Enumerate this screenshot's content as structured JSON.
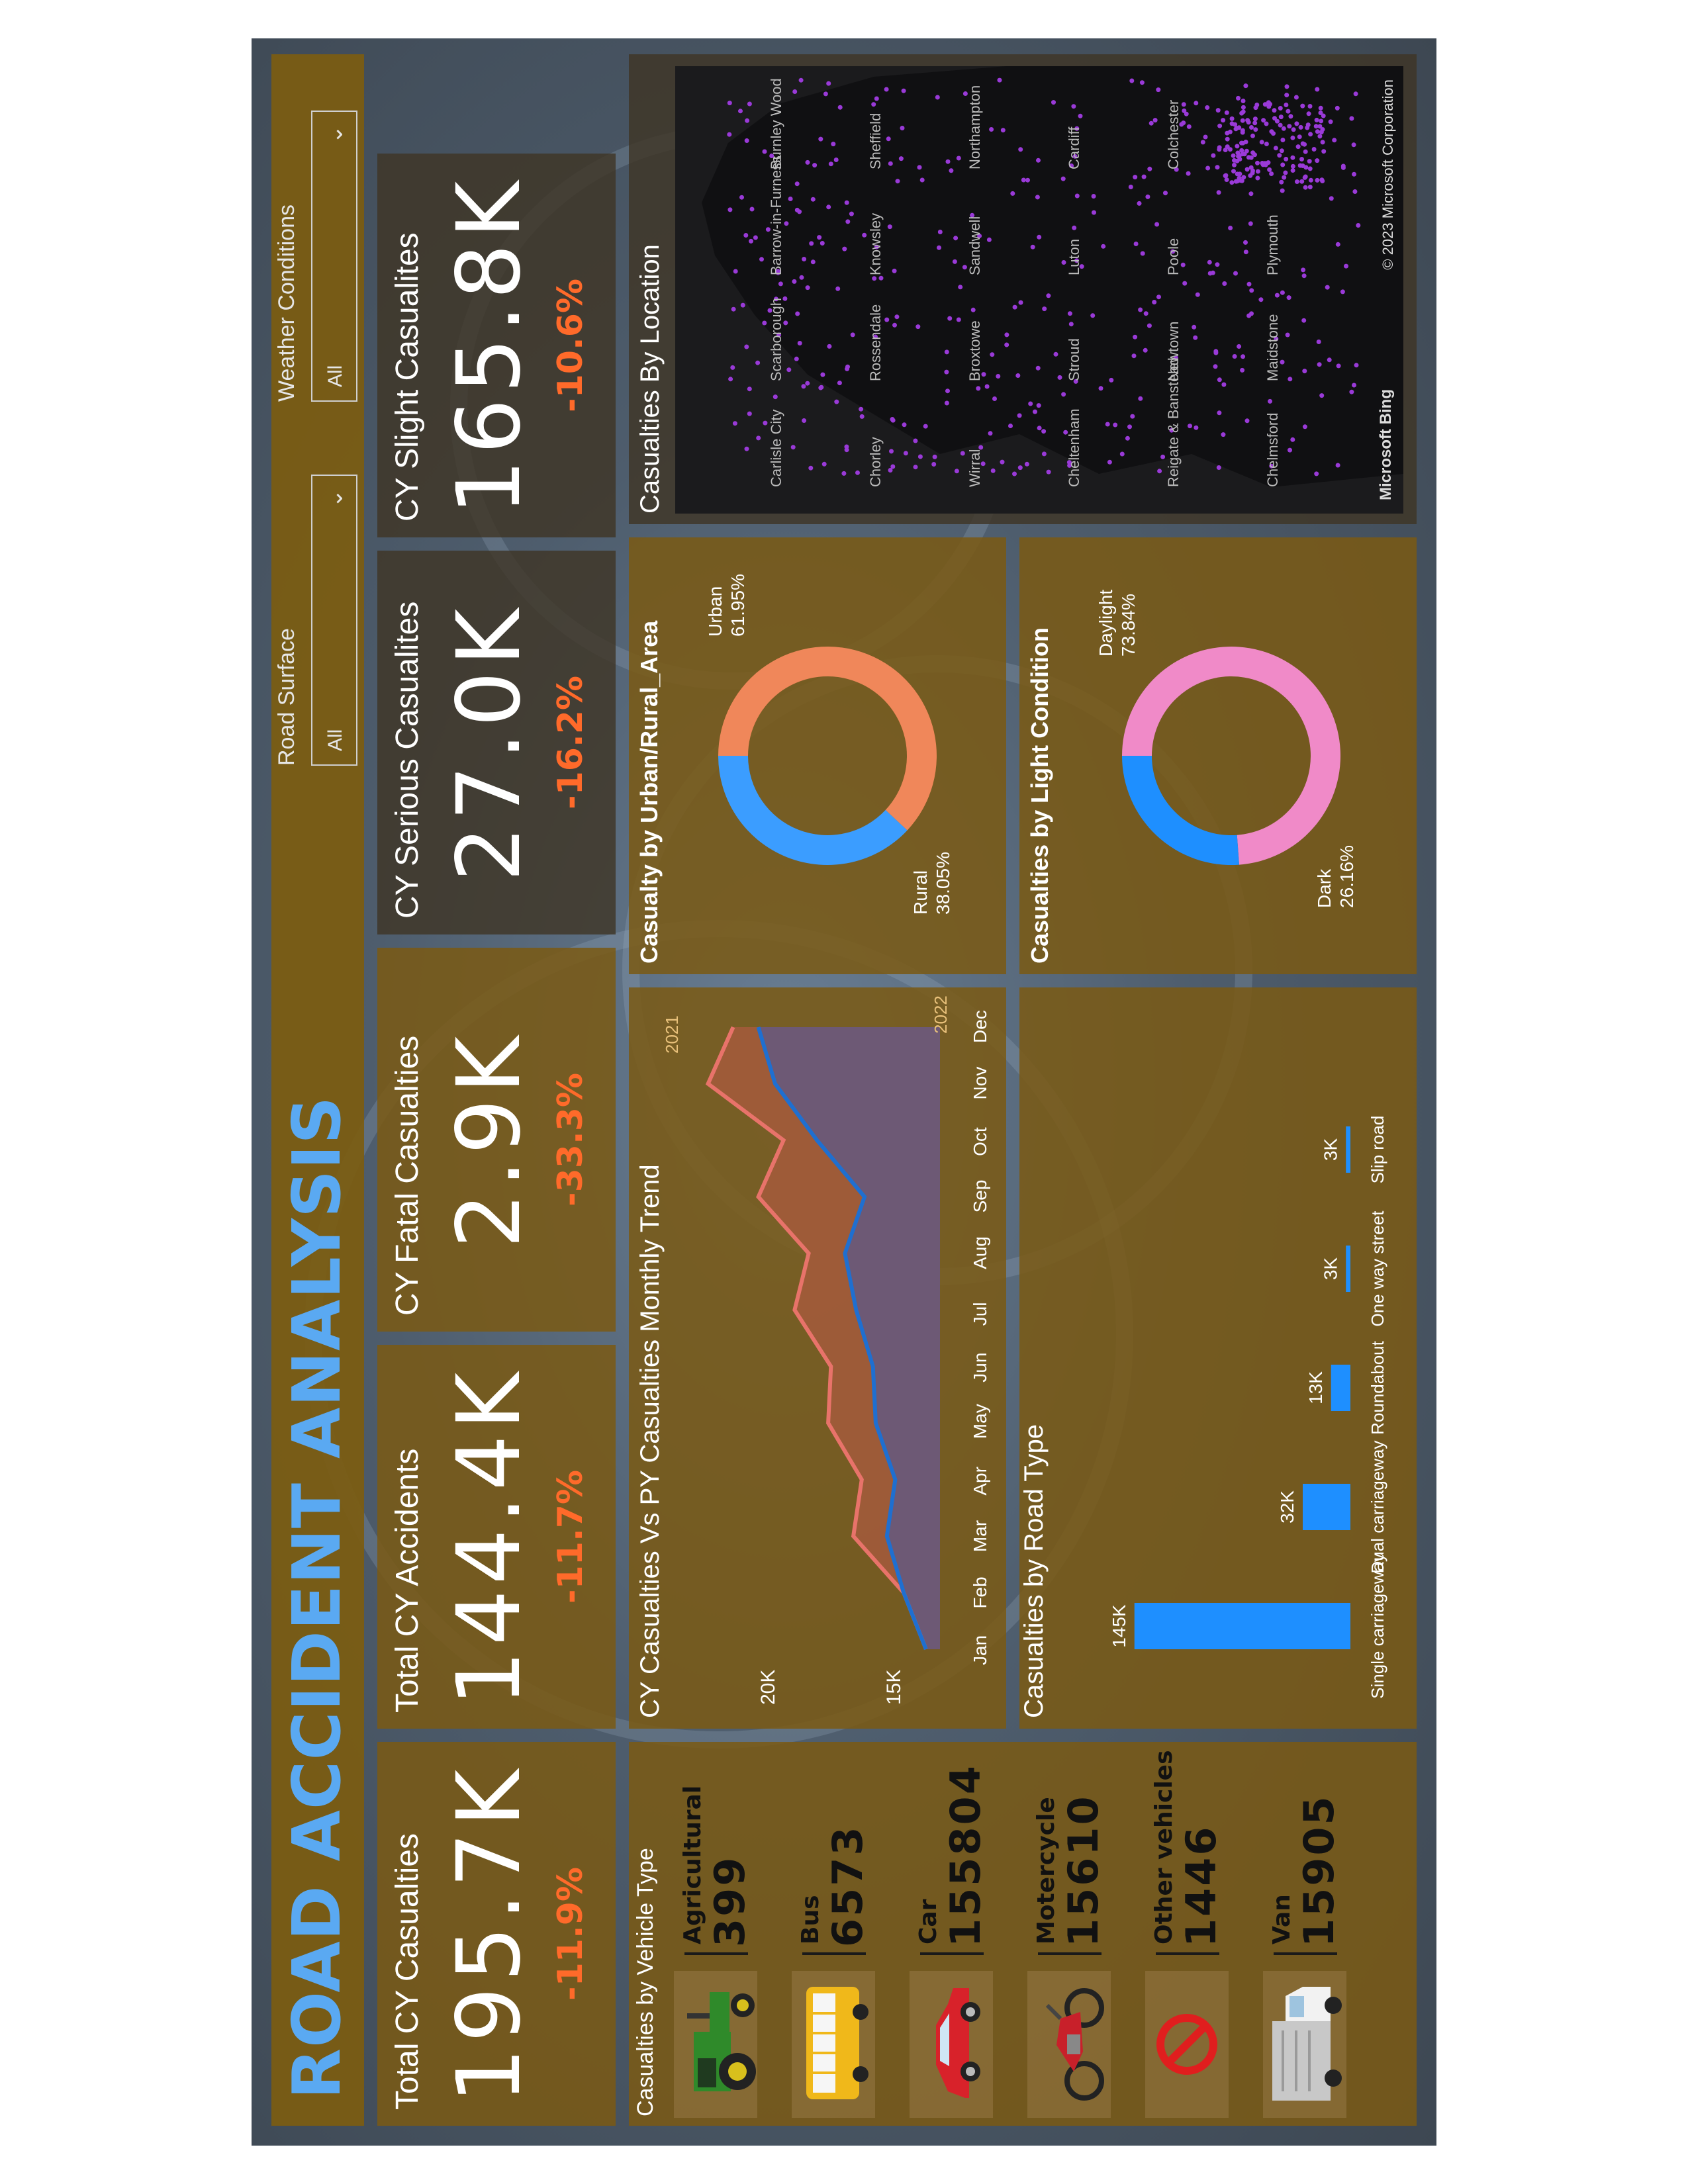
{
  "title": "ROAD ACCIDENT ANALYSIS",
  "filters": [
    {
      "label": "Road Surface",
      "value": "All"
    },
    {
      "label": "Weather Conditions",
      "value": "All"
    }
  ],
  "kpis": [
    {
      "label": "Total CY Casualties",
      "value": "195.7K",
      "delta": "-11.9%"
    },
    {
      "label": "Total CY Accidents",
      "value": "144.4K",
      "delta": "-11.7%"
    },
    {
      "label": "CY Fatal Casualties",
      "value": "2.9K",
      "delta": "-33.3%"
    },
    {
      "label": "CY Serious Casualites",
      "value": "27.0K",
      "delta": "-16.2%"
    },
    {
      "label": "CY Slight Casualites",
      "value": "165.8K",
      "delta": "-10.6%"
    }
  ],
  "vehicle_panel": {
    "title": "Casualties by Vehicle Type",
    "items": [
      {
        "name": "Agricultural",
        "value": "399",
        "icon": "tractor-icon"
      },
      {
        "name": "Bus",
        "value": "6573",
        "icon": "bus-icon"
      },
      {
        "name": "Car",
        "value": "155804",
        "icon": "car-icon"
      },
      {
        "name": "Motercycle",
        "value": "15610",
        "icon": "motorcycle-icon"
      },
      {
        "name": "Other vehicles",
        "value": "1446",
        "icon": "prohibited-icon"
      },
      {
        "name": "Van",
        "value": "15905",
        "icon": "van-icon"
      }
    ]
  },
  "map": {
    "title": "Casualties By Location",
    "attribution": "© 2023 Microsoft Corporation",
    "logo": "Microsoft Bing",
    "labels": [
      "Carlisle City",
      "Scarborough",
      "Barrow-in-Furness",
      "Burnley Wood",
      "Chorley",
      "Rossendale",
      "Knowsley",
      "Sheffield",
      "Wirral",
      "Broxtowe",
      "Sandwell",
      "Northampton",
      "Cheltenham",
      "Stroud",
      "Luton",
      "Cardiff",
      "Reigate & Banstead",
      "Newtown",
      "Poole",
      "Colchester",
      "Chelmsford",
      "Maidstone",
      "Plymouth"
    ]
  },
  "charts": [
    {
      "id": "monthly-trend",
      "chart_data": {
        "type": "area",
        "title": "CY Casualties Vs PY Casualties Monthly Trend",
        "categories": [
          "Jan",
          "Feb",
          "Mar",
          "Apr",
          "May",
          "Jun",
          "Jul",
          "Aug",
          "Sep",
          "Oct",
          "Nov",
          "Dec"
        ],
        "yticks": [
          "15K",
          "20K"
        ],
        "ylim": [
          13000,
          22000
        ],
        "series": [
          {
            "name": "2021",
            "color": "#e8736a",
            "values": [
              13500,
              14300,
              16100,
              15800,
              17000,
              16900,
              18200,
              17700,
              19500,
              18600,
              21300,
              20400
            ]
          },
          {
            "name": "2022",
            "color": "#1f6fd0",
            "values": [
              13500,
              14300,
              14900,
              14600,
              15300,
              15400,
              16000,
              16400,
              15700,
              17400,
              18900,
              19500
            ]
          }
        ]
      }
    },
    {
      "id": "road-type",
      "chart_data": {
        "type": "bar",
        "title": "Casualties by Road Type",
        "categories": [
          "Single carriageway",
          "Dual carriageway",
          "Roundabout",
          "One way street",
          "Slip road"
        ],
        "values": [
          145000,
          32000,
          13000,
          3000,
          3000
        ],
        "labels": [
          "145K",
          "32K",
          "13K",
          "3K",
          "3K"
        ],
        "color": "#1e8fff",
        "ylim": [
          0,
          160000
        ]
      }
    },
    {
      "id": "urban-rural",
      "chart_data": {
        "type": "pie",
        "title": "Casualty by Urban/Rural_Area",
        "slices": [
          {
            "name": "Urban",
            "value": 61.95,
            "label": "61.95%",
            "color": "#f0875a"
          },
          {
            "name": "Rural",
            "value": 38.05,
            "label": "38.05%",
            "color": "#3b9dff"
          }
        ]
      }
    },
    {
      "id": "light-condition",
      "chart_data": {
        "type": "pie",
        "title": "Casualties by Light Condition",
        "slices": [
          {
            "name": "Daylight",
            "value": 73.84,
            "label": "73.84%",
            "color": "#f08ac8"
          },
          {
            "name": "Dark",
            "value": 26.16,
            "label": "26.16%",
            "color": "#1e8fff"
          }
        ]
      }
    }
  ]
}
